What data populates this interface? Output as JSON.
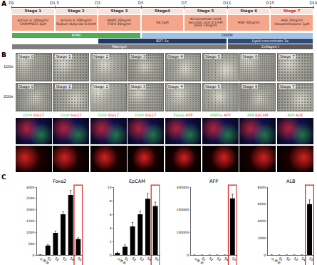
{
  "panels": [
    "A",
    "B",
    "C"
  ],
  "timeline": {
    "days": [
      "D0",
      "D1.5",
      "D3",
      "D5",
      "D7",
      "D11",
      "D15",
      "D19"
    ],
    "stages": [
      {
        "label": "Stage 1",
        "color": "#333333",
        "factors": [
          "Activin A 100ng/ml",
          "CHIR99021 3μM"
        ]
      },
      {
        "label": "Stage 2",
        "color": "#333333",
        "factors": [
          "Activin A 100ng/ml",
          "Sodium Butyrate 0.5mM"
        ]
      },
      {
        "label": "Stage 3",
        "color": "#333333",
        "factors": [
          "BMP2 20ng/ml",
          "FGF4 30ng/ml"
        ]
      },
      {
        "label": "Stage4",
        "color": "#333333",
        "factors": [
          "RA 2μM"
        ]
      },
      {
        "label": "Stage 5",
        "color": "#333333",
        "factors": [
          "Nicotinamide 1mM",
          "Ascorbic acid 0.1mM",
          "bFGF 10ng/ml"
        ]
      },
      {
        "label": "Stage 6",
        "color": "#333333",
        "factors": [
          "HGF 20ng/ml"
        ]
      },
      {
        "label": "Stage 7",
        "color": "#e02020",
        "factors": [
          "HGF 20ng/ml",
          "Dexamethasone 1μM"
        ]
      }
    ],
    "media_rows": [
      [
        {
          "label": "RPMI",
          "from": "D0",
          "to": "D5",
          "color": "#4caf50"
        },
        {
          "label": "DMEM",
          "from": "D5",
          "to": "D19",
          "color": "#9dc3e6"
        }
      ],
      [
        {
          "label": "B27 1x",
          "from": "D3",
          "to": "D11",
          "color": "#1f3864"
        },
        {
          "label": "Lipid concentrate 1x",
          "from": "D11",
          "to": "D19",
          "color": "#2e4a7d"
        }
      ],
      [
        {
          "label": "Matrigel",
          "from": "D0",
          "to": "D11",
          "color": "#7f7f7f"
        },
        {
          "label": "Collagen I",
          "from": "D11",
          "to": "D19",
          "color": "#595959"
        }
      ]
    ]
  },
  "images": {
    "rows": [
      {
        "type": "brightfield",
        "label": "100x",
        "cells": [
          "Stage 0",
          "Stage 1",
          "Stage 2",
          "Stage 3",
          "Stage 4",
          "Stage 5",
          "Stage 6",
          "Stage 7"
        ]
      },
      {
        "type": "brightfield",
        "label": "200x",
        "cells": [
          "Stage 0",
          "Stage 1",
          "Stage 2",
          "Stage 3",
          "Stage 4",
          "Stage 5",
          "Stage 6",
          "Stage 7"
        ]
      },
      {
        "type": "fluorescence",
        "stains": [
          [
            {
              "text": "Oct4",
              "color": "#2ecc40"
            },
            {
              "text": "Sox17",
              "color": "#ff2a2a"
            }
          ],
          [
            {
              "text": "Oct4",
              "color": "#2ecc40"
            },
            {
              "text": "Sox17",
              "color": "#ff2a2a"
            }
          ],
          [
            {
              "text": "Oct4",
              "color": "#2ecc40"
            },
            {
              "text": "Sox17",
              "color": "#ff2a2a"
            }
          ],
          [
            {
              "text": "Oct4",
              "color": "#2ecc40"
            },
            {
              "text": "Sox17",
              "color": "#ff2a2a"
            }
          ],
          [
            {
              "text": "Foxa2",
              "color": "#2ecc40"
            },
            {
              "text": "AFP",
              "color": "#ff2a2a"
            }
          ],
          [
            {
              "text": "HNF4a",
              "color": "#2ecc40"
            },
            {
              "text": "AFP",
              "color": "#ff2a2a"
            }
          ],
          [
            {
              "text": "AFP",
              "color": "#2ecc40"
            },
            {
              "text": "EpCAM",
              "color": "#ff2a2a"
            }
          ],
          [
            {
              "text": "AFP",
              "color": "#2ecc40"
            },
            {
              "text": "ALB",
              "color": "#ff2a2a"
            }
          ]
        ]
      },
      {
        "type": "fluorescence",
        "color": "#ff2a2a"
      }
    ]
  },
  "chart_data": [
    {
      "type": "bar",
      "title": "Foxa2",
      "color": "#000000",
      "categories": [
        "미분화",
        "S1",
        "S2",
        "S3",
        "S4",
        "S5"
      ],
      "values": [
        5,
        420,
        980,
        1800,
        2650,
        700
      ],
      "errors": [
        2,
        40,
        80,
        120,
        200,
        60
      ],
      "ylim": [
        0,
        3000
      ],
      "yticks": [
        0,
        500,
        1000,
        1500,
        2000,
        2500,
        3000
      ]
    },
    {
      "type": "bar",
      "title": "EpCAM",
      "color": "#000000",
      "categories": [
        "미분화",
        "S1",
        "S2",
        "S3",
        "S4",
        "S5"
      ],
      "values": [
        0.3,
        1.2,
        4.2,
        6,
        8.3,
        7.2
      ],
      "errors": [
        0.1,
        0.3,
        0.6,
        0.5,
        0.8,
        0.6
      ],
      "ylim": [
        0,
        10
      ],
      "yticks": [
        0,
        2,
        4,
        6,
        8,
        10
      ]
    },
    {
      "type": "bar",
      "title": "AFP",
      "color": "#000000",
      "categories": [
        "미분화",
        "S1",
        "S2",
        "S3",
        "S4",
        "S5"
      ],
      "values": [
        0,
        0,
        0,
        0,
        0,
        250000
      ],
      "errors": [
        0,
        0,
        0,
        0,
        0,
        20000
      ],
      "ylim": [
        0,
        300000
      ],
      "yticks": [
        0,
        100000,
        200000,
        300000
      ]
    },
    {
      "type": "bar",
      "title": "ALB",
      "color": "#000000",
      "categories": [
        "미분화",
        "S1",
        "S2",
        "S3",
        "S4",
        "S5"
      ],
      "values": [
        0,
        0,
        0,
        0,
        0,
        6000
      ],
      "errors": [
        0,
        0,
        0,
        0,
        0,
        500
      ],
      "ylim": [
        0,
        8000
      ],
      "yticks": [
        0,
        2000,
        4000,
        6000,
        8000
      ]
    }
  ]
}
